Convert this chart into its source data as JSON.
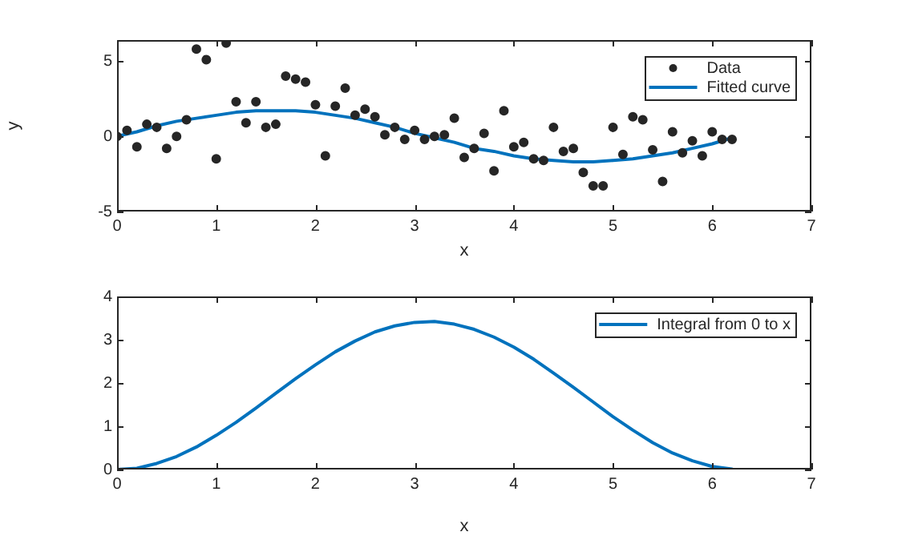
{
  "chart_data": [
    {
      "type": "scatter",
      "xlabel": "x",
      "ylabel": "y",
      "xlim": [
        0,
        7
      ],
      "xticks": [
        0,
        1,
        2,
        3,
        4,
        5,
        6,
        7
      ],
      "ylim": [
        -5,
        6.4
      ],
      "yticks": [
        -5,
        0,
        5
      ],
      "legend": "top right",
      "series": [
        {
          "name": "Data",
          "type": "scatter",
          "marker": "circle",
          "color": "#262626",
          "x": [
            0,
            0.1,
            0.2,
            0.3,
            0.4,
            0.5,
            0.6,
            0.7,
            0.8,
            0.9,
            1,
            1.1,
            1.2,
            1.3,
            1.4,
            1.5,
            1.6,
            1.7,
            1.8,
            1.9,
            2,
            2.1,
            2.2,
            2.3,
            2.4,
            2.5,
            2.6,
            2.7,
            2.8,
            2.9,
            3,
            3.1,
            3.2,
            3.3,
            3.4,
            3.5,
            3.6,
            3.7,
            3.8,
            3.9,
            4,
            4.1,
            4.2,
            4.3,
            4.4,
            4.5,
            4.6,
            4.7,
            4.8,
            4.9,
            5,
            5.1,
            5.2,
            5.3,
            5.4,
            5.5,
            5.6,
            5.7,
            5.8,
            5.9,
            6,
            6.1,
            6.2
          ],
          "values": [
            0,
            0.4,
            -0.7,
            0.8,
            0.6,
            -0.8,
            0,
            1.1,
            5.8,
            5.1,
            -1.5,
            6.2,
            2.3,
            0.9,
            2.3,
            0.6,
            0.8,
            4,
            3.8,
            3.6,
            2.1,
            -1.3,
            2,
            3.2,
            1.4,
            1.8,
            1.3,
            0.1,
            0.6,
            -0.2,
            0.4,
            -0.2,
            0,
            0.1,
            1.2,
            -1.4,
            -0.8,
            0.2,
            -2.3,
            1.7,
            -0.7,
            -0.4,
            -1.5,
            -1.6,
            0.6,
            -1,
            -0.8,
            -2.4,
            -3.3,
            -3.3,
            0.6,
            -1.2,
            1.3,
            1.1,
            -0.9,
            -3,
            0.3,
            -1.1,
            -0.3,
            -1.3,
            0.3,
            -0.2,
            -0.2
          ]
        },
        {
          "name": "Fitted curve",
          "type": "line",
          "marker": "none",
          "color": "#0072bd",
          "x": [
            0,
            0.2,
            0.4,
            0.6,
            0.8,
            1,
            1.2,
            1.4,
            1.6,
            1.8,
            2,
            2.2,
            2.4,
            2.6,
            2.8,
            3,
            3.2,
            3.4,
            3.6,
            3.8,
            4,
            4.2,
            4.4,
            4.6,
            4.8,
            5,
            5.2,
            5.4,
            5.6,
            5.8,
            6,
            6.2
          ],
          "values": [
            0,
            0.3,
            0.7,
            1,
            1.2,
            1.4,
            1.6,
            1.7,
            1.7,
            1.7,
            1.6,
            1.4,
            1.2,
            0.9,
            0.6,
            0.2,
            -0.1,
            -0.4,
            -0.8,
            -1,
            -1.3,
            -1.5,
            -1.6,
            -1.7,
            -1.7,
            -1.6,
            -1.5,
            -1.3,
            -1.1,
            -0.8,
            -0.5,
            -0.1
          ]
        }
      ]
    },
    {
      "type": "line",
      "xlabel": "x",
      "xlim": [
        0,
        7
      ],
      "xticks": [
        0,
        1,
        2,
        3,
        4,
        5,
        6,
        7
      ],
      "ylim": [
        0,
        4
      ],
      "yticks": [
        0,
        1,
        2,
        3,
        4
      ],
      "legend": "top right",
      "series": [
        {
          "name": "Integral from 0 to x",
          "color": "#0072bd",
          "x": [
            0,
            0.2,
            0.4,
            0.6,
            0.8,
            1,
            1.2,
            1.4,
            1.6,
            1.8,
            2,
            2.2,
            2.4,
            2.6,
            2.8,
            3,
            3.2,
            3.4,
            3.6,
            3.8,
            4,
            4.2,
            4.4,
            4.6,
            4.8,
            5,
            5.2,
            5.4,
            5.6,
            5.8,
            6,
            6.2
          ],
          "values": [
            0,
            0.03,
            0.14,
            0.3,
            0.52,
            0.79,
            1.09,
            1.42,
            1.76,
            2.1,
            2.42,
            2.72,
            2.97,
            3.18,
            3.32,
            3.4,
            3.42,
            3.36,
            3.24,
            3.06,
            2.83,
            2.55,
            2.23,
            1.9,
            1.56,
            1.22,
            0.91,
            0.62,
            0.38,
            0.2,
            0.07,
            0.01
          ]
        }
      ]
    }
  ]
}
